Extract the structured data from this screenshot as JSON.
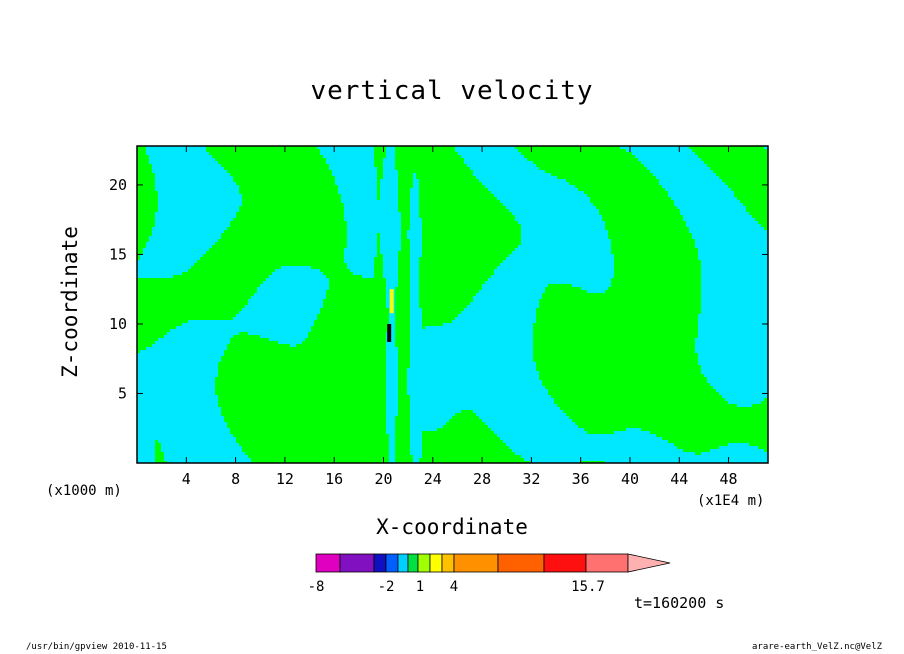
{
  "figure": {
    "title": "vertical velocity",
    "xlabel": "X-coordinate",
    "ylabel": "Z-coordinate",
    "x_scale_left": "(x1000 m)",
    "x_scale_right": "(x1E4 m)",
    "time_label": "t=160200 s",
    "footer_left": "/usr/bin/gpview   2010-11-15",
    "footer_right": "arare-earth_VelZ.nc@VelZ"
  },
  "colors": {
    "frame": "#000000",
    "contour_line": "#000000",
    "negative_fill": "#00e8ff",
    "positive_fill": "#00ff00",
    "yellow": "#ffff00",
    "black_core": "#000000"
  },
  "chart_data": {
    "type": "heatmap",
    "title": "vertical velocity",
    "xlabel": "X-coordinate",
    "ylabel": "Z-coordinate",
    "x_ticks": [
      "4",
      "8",
      "12",
      "16",
      "20",
      "24",
      "28",
      "32",
      "36",
      "40",
      "44",
      "48"
    ],
    "x_tick_values": [
      4,
      8,
      12,
      16,
      20,
      24,
      28,
      32,
      36,
      40,
      44,
      48
    ],
    "y_ticks": [
      "5",
      "10",
      "15",
      "20"
    ],
    "y_tick_values": [
      5,
      10,
      15,
      20
    ],
    "xlim": [
      0,
      51.2
    ],
    "ylim": [
      0,
      22.8
    ],
    "grid": false,
    "colorbar": {
      "levels_shown": [
        "-8",
        "-2",
        "1",
        "4",
        "15.7"
      ],
      "colors": [
        "#e000c0",
        "#8010c0",
        "#1010c0",
        "#0060ff",
        "#00d0ff",
        "#00e040",
        "#a0ff00",
        "#ffff00",
        "#ffc000",
        "#ff9000",
        "#ff6000",
        "#ff1010",
        "#ff7070",
        "#ffb0b0"
      ]
    },
    "time_label": "t=160200 s"
  }
}
